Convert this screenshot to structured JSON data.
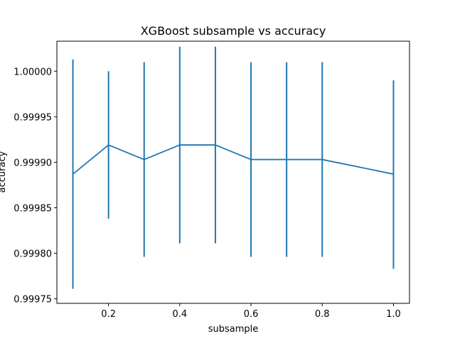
{
  "chart_data": {
    "type": "line",
    "title": "XGBoost subsample vs accuracy",
    "xlabel": "subsample",
    "ylabel": "accuracy",
    "xlim": [
      0.055,
      1.045
    ],
    "ylim": [
      0.999745,
      1.000033
    ],
    "xticks": [
      0.2,
      0.4,
      0.6,
      0.8,
      1.0
    ],
    "xtick_labels": [
      "0.2",
      "0.4",
      "0.6",
      "0.8",
      "1.0"
    ],
    "yticks": [
      0.99975,
      0.9998,
      0.99985,
      0.9999,
      0.99995,
      1.0
    ],
    "ytick_labels": [
      "0.99975",
      "0.99980",
      "0.99985",
      "0.99990",
      "0.99995",
      "1.00000"
    ],
    "grid": false,
    "series": [
      {
        "x": [
          0.1,
          0.2,
          0.3,
          0.4,
          0.5,
          0.6,
          0.7,
          0.8,
          1.0
        ],
        "y": [
          0.999887,
          0.999919,
          0.999903,
          0.999919,
          0.999919,
          0.999903,
          0.999903,
          0.999903,
          0.999887
        ],
        "err_low": [
          0.999761,
          0.999838,
          0.999796,
          0.999811,
          0.999811,
          0.999796,
          0.999796,
          0.999796,
          0.999783
        ],
        "err_high": [
          1.000013,
          1.0,
          1.00001,
          1.000027,
          1.000027,
          1.00001,
          1.00001,
          1.00001,
          0.99999
        ],
        "color": "#1f77b4"
      }
    ]
  }
}
